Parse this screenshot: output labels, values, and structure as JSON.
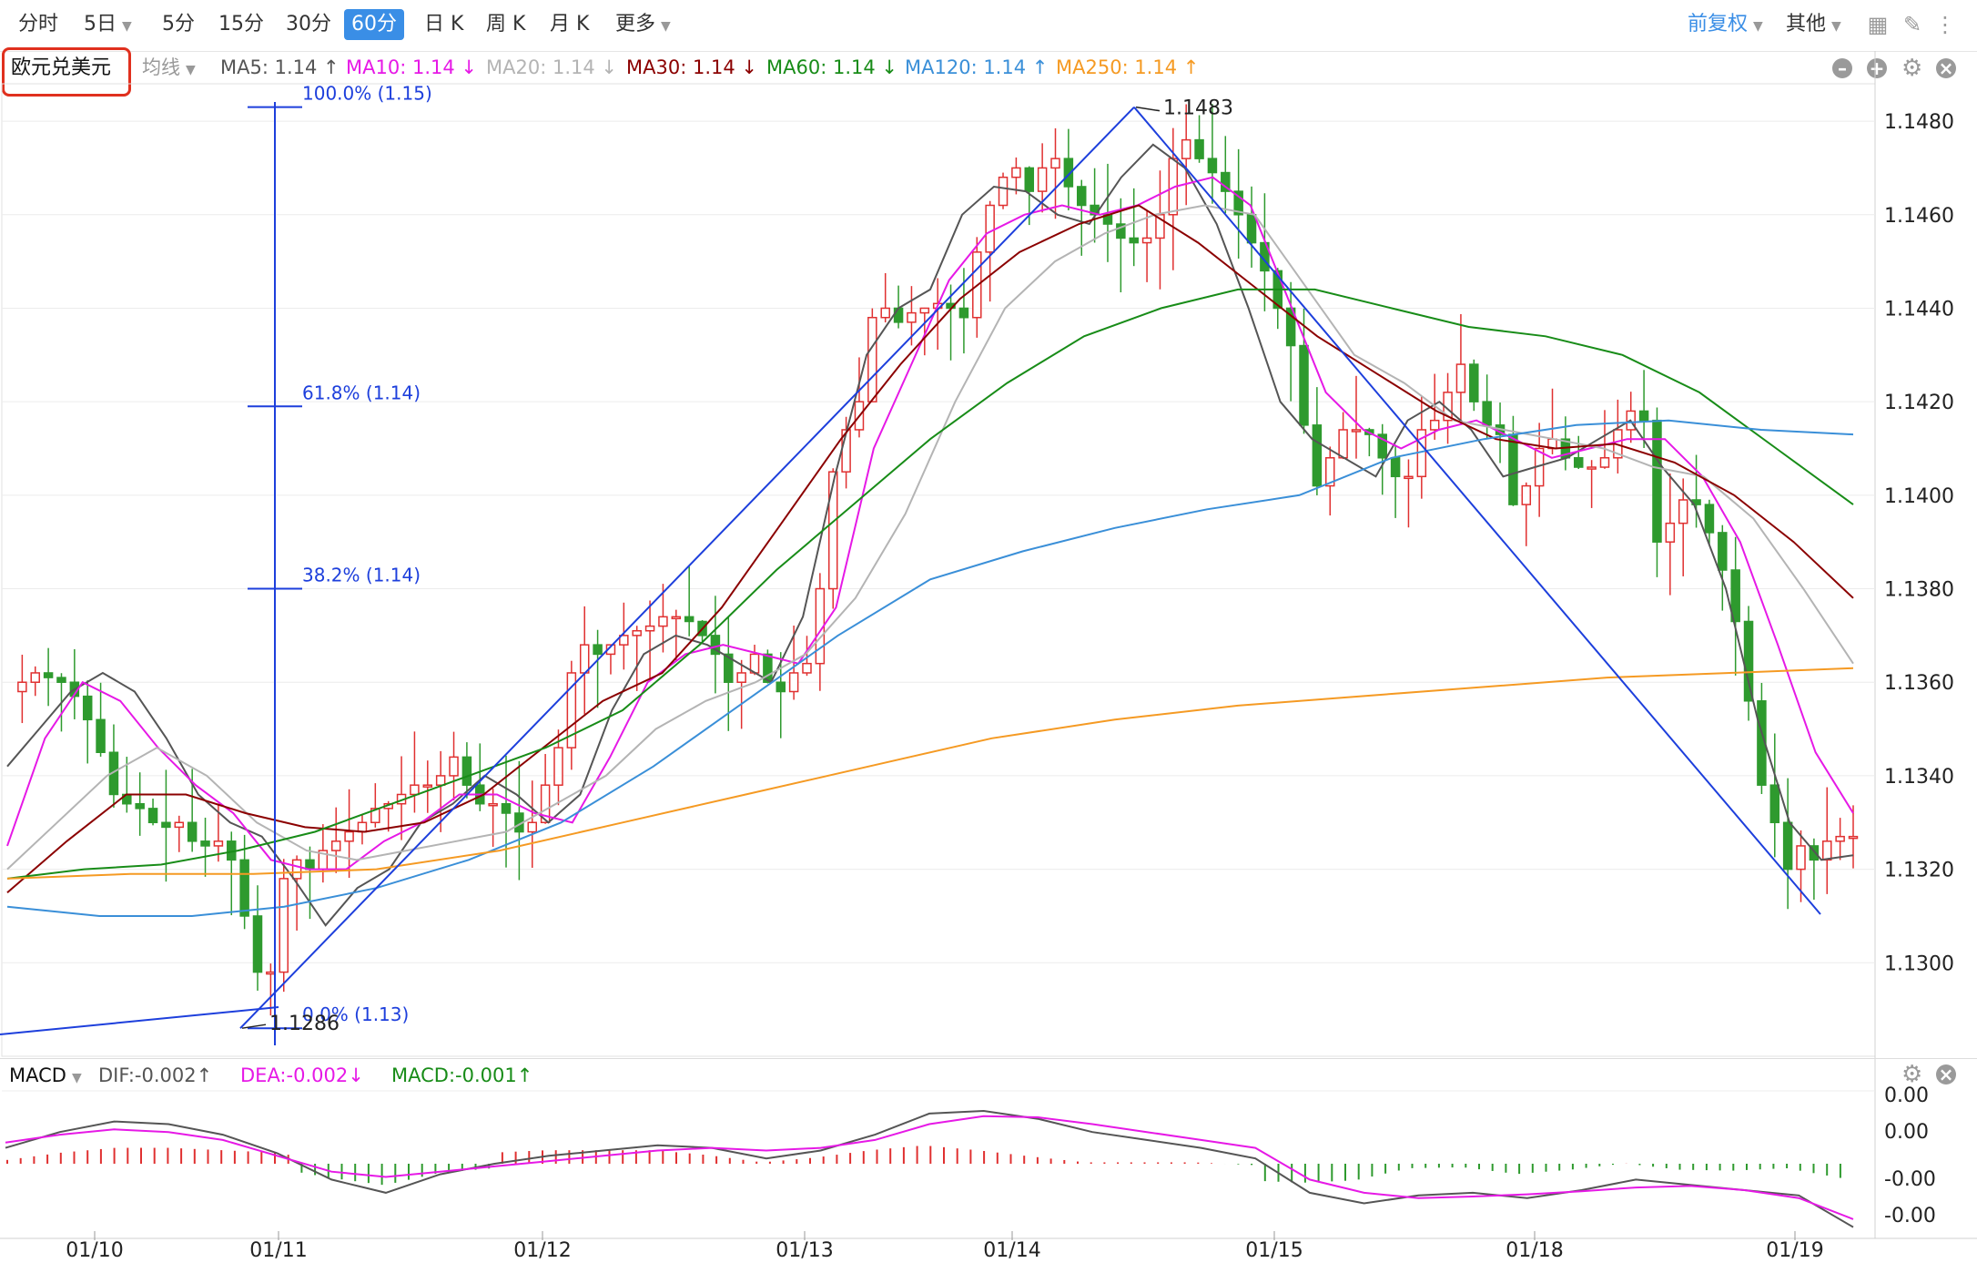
{
  "toolbar": {
    "left_items": [
      {
        "label": "分时",
        "active": false
      },
      {
        "label": "5日",
        "active": false,
        "dropdown": true
      },
      {
        "label": "5分",
        "active": false
      },
      {
        "label": "15分",
        "active": false
      },
      {
        "label": "30分",
        "active": false
      },
      {
        "label": "60分",
        "active": true
      },
      {
        "label": "日 K",
        "active": false
      },
      {
        "label": "周 K",
        "active": false
      },
      {
        "label": "月 K",
        "active": false
      },
      {
        "label": "更多",
        "active": false,
        "dropdown": true
      }
    ],
    "right_items": [
      {
        "label": "前复权",
        "dropdown": true
      },
      {
        "label": "其他",
        "dropdown": true
      }
    ],
    "icons": [
      "grid-icon",
      "pencil-icon",
      "more-icon"
    ]
  },
  "symbol": "欧元兑美元",
  "indicator_select": "均线",
  "ma_legend": [
    {
      "label": "MA5: 1.14 ↑",
      "color": "#555555"
    },
    {
      "label": "MA10: 1.14 ↓",
      "color": "#e619e6"
    },
    {
      "label": "MA20: 1.14 ↓",
      "color": "#b4b4b4"
    },
    {
      "label": "MA30: 1.14 ↓",
      "color": "#8b0000"
    },
    {
      "label": "MA60: 1.14 ↓",
      "color": "#188c18"
    },
    {
      "label": "MA120: 1.14 ↑",
      "color": "#3a8fd8"
    },
    {
      "label": "MA250: 1.14 ↑",
      "color": "#f59a23"
    }
  ],
  "macd_legend": {
    "name": "MACD",
    "items": [
      {
        "label": "DIF:-0.002↑",
        "color": "#555555"
      },
      {
        "label": "DEA:-0.002↓",
        "color": "#e619e6"
      },
      {
        "label": "MACD:-0.001↑",
        "color": "#188c18"
      }
    ]
  },
  "colors": {
    "up": "#e03030",
    "down": "#2e9a2e",
    "fib": "#1d3fdc",
    "accent": "#3a8ee6"
  },
  "chart_data": [
    {
      "type": "candlestick",
      "title": "欧元兑美元",
      "timeframe": "60分",
      "x_ticks": [
        "01/10",
        "01/11",
        "01/12",
        "01/13",
        "01/14",
        "01/15",
        "01/18",
        "01/19"
      ],
      "y_ticks": [
        1.13,
        1.132,
        1.134,
        1.136,
        1.138,
        1.14,
        1.142,
        1.144,
        1.146,
        1.148
      ],
      "ylim": [
        1.128,
        1.1488
      ],
      "annotations": [
        {
          "text": "1.1483",
          "price": 1.1483
        },
        {
          "text": "1.1286",
          "price": 1.1286
        }
      ],
      "fibonacci": [
        {
          "label": "100.0% (1.15)",
          "price": 1.1483
        },
        {
          "label": "61.8% (1.14)",
          "price": 1.1419
        },
        {
          "label": "38.2% (1.14)",
          "price": 1.138
        },
        {
          "label": "0.0% (1.13)",
          "price": 1.1286
        }
      ],
      "close_path_points": [
        1.1358,
        1.136,
        1.1362,
        1.1361,
        1.136,
        1.1357,
        1.1352,
        1.1345,
        1.1336,
        1.1334,
        1.1333,
        1.133,
        1.1329,
        1.133,
        1.1326,
        1.1325,
        1.1326,
        1.1322,
        1.131,
        1.1298,
        1.1298,
        1.1318,
        1.1322,
        1.132,
        1.1324,
        1.1326,
        1.1328,
        1.133,
        1.1333,
        1.1334,
        1.1336,
        1.1338,
        1.1338,
        1.134,
        1.1344,
        1.1338,
        1.1334,
        1.1334,
        1.1332,
        1.1328,
        1.133,
        1.1338,
        1.1346,
        1.1362,
        1.1368,
        1.1366,
        1.1368,
        1.137,
        1.1371,
        1.1372,
        1.1374,
        1.1374,
        1.1373,
        1.137,
        1.1366,
        1.136,
        1.1362,
        1.1366,
        1.136,
        1.1358,
        1.1362,
        1.1364,
        1.138,
        1.1405,
        1.1414,
        1.142,
        1.1438,
        1.144,
        1.1437,
        1.1439,
        1.144,
        1.1441,
        1.144,
        1.1438,
        1.1452,
        1.1462,
        1.1468,
        1.147,
        1.1465,
        1.147,
        1.1472,
        1.1466,
        1.1462,
        1.146,
        1.1458,
        1.1455,
        1.1454,
        1.1455,
        1.146,
        1.1472,
        1.1476,
        1.1472,
        1.1469,
        1.1465,
        1.146,
        1.1454,
        1.1448,
        1.144,
        1.1432,
        1.1415,
        1.1402,
        1.1408,
        1.1414,
        1.1414,
        1.1413,
        1.1408,
        1.1404,
        1.1404,
        1.1414,
        1.1416,
        1.1422,
        1.1428,
        1.142,
        1.1415,
        1.1413,
        1.1398,
        1.1402,
        1.141,
        1.1412,
        1.1408,
        1.1406,
        1.1406,
        1.1408,
        1.1414,
        1.1418,
        1.1416,
        1.139,
        1.1394,
        1.1399,
        1.1398,
        1.1392,
        1.1384,
        1.1373,
        1.1356,
        1.1338,
        1.133,
        1.132,
        1.1325,
        1.1322,
        1.1326,
        1.1327,
        1.1327
      ],
      "series": [
        {
          "name": "MA5",
          "color": "#555555",
          "points": [
            1.1342,
            1.135,
            1.1358,
            1.1362,
            1.1358,
            1.1348,
            1.1336,
            1.133,
            1.1327,
            1.1318,
            1.1308,
            1.1316,
            1.132,
            1.133,
            1.1334,
            1.134,
            1.1336,
            1.133,
            1.1336,
            1.1354,
            1.1366,
            1.137,
            1.1368,
            1.1364,
            1.136,
            1.1374,
            1.1404,
            1.143,
            1.144,
            1.1444,
            1.146,
            1.1466,
            1.1465,
            1.146,
            1.1458,
            1.1468,
            1.1475,
            1.147,
            1.1458,
            1.144,
            1.142,
            1.1412,
            1.1408,
            1.1404,
            1.1416,
            1.142,
            1.1414,
            1.1404,
            1.1406,
            1.1408,
            1.1412,
            1.1416,
            1.1406,
            1.1398,
            1.138,
            1.1352,
            1.133,
            1.1322,
            1.1323
          ]
        },
        {
          "name": "MA10",
          "color": "#e619e6",
          "points": [
            1.1325,
            1.1348,
            1.136,
            1.1356,
            1.1346,
            1.1338,
            1.1332,
            1.1322,
            1.132,
            1.132,
            1.1326,
            1.133,
            1.1336,
            1.1336,
            1.1332,
            1.133,
            1.1344,
            1.136,
            1.1366,
            1.1368,
            1.1366,
            1.1364,
            1.1376,
            1.141,
            1.1428,
            1.1446,
            1.1456,
            1.146,
            1.1462,
            1.146,
            1.1462,
            1.1466,
            1.1468,
            1.1462,
            1.1442,
            1.1422,
            1.1414,
            1.141,
            1.1414,
            1.1416,
            1.1412,
            1.1408,
            1.141,
            1.1412,
            1.1412,
            1.1404,
            1.139,
            1.1368,
            1.1345,
            1.1332
          ]
        },
        {
          "name": "MA20",
          "color": "#b4b4b4",
          "points": [
            1.132,
            1.133,
            1.134,
            1.1346,
            1.134,
            1.133,
            1.1324,
            1.1322,
            1.1324,
            1.1326,
            1.1328,
            1.1334,
            1.134,
            1.135,
            1.1356,
            1.136,
            1.1366,
            1.1378,
            1.1396,
            1.142,
            1.144,
            1.145,
            1.1456,
            1.146,
            1.1462,
            1.146,
            1.1445,
            1.143,
            1.1424,
            1.1416,
            1.1414,
            1.1412,
            1.141,
            1.1406,
            1.1404,
            1.1395,
            1.138,
            1.1364
          ]
        },
        {
          "name": "MA30",
          "color": "#8b0000",
          "points": [
            1.1315,
            1.1326,
            1.1336,
            1.1336,
            1.1332,
            1.1329,
            1.1328,
            1.133,
            1.1336,
            1.1346,
            1.1356,
            1.1362,
            1.1376,
            1.1394,
            1.1412,
            1.1428,
            1.1442,
            1.1452,
            1.1458,
            1.1462,
            1.1454,
            1.1444,
            1.1434,
            1.1426,
            1.1418,
            1.1412,
            1.141,
            1.1411,
            1.1407,
            1.14,
            1.139,
            1.1378
          ]
        },
        {
          "name": "MA60",
          "color": "#188c18",
          "points": [
            1.1318,
            1.132,
            1.1321,
            1.1324,
            1.1328,
            1.1334,
            1.134,
            1.1346,
            1.1354,
            1.1368,
            1.1384,
            1.1398,
            1.1412,
            1.1424,
            1.1434,
            1.144,
            1.1444,
            1.1444,
            1.144,
            1.1436,
            1.1434,
            1.143,
            1.1422,
            1.141,
            1.1398
          ]
        },
        {
          "name": "MA120",
          "color": "#3a8fd8",
          "points": [
            1.1312,
            1.131,
            1.131,
            1.1312,
            1.1316,
            1.1322,
            1.133,
            1.1342,
            1.1356,
            1.137,
            1.1382,
            1.1388,
            1.1393,
            1.1397,
            1.14,
            1.1408,
            1.1412,
            1.1415,
            1.1416,
            1.1414,
            1.1413
          ]
        },
        {
          "name": "MA250",
          "color": "#f59a23",
          "points": [
            1.1318,
            1.1319,
            1.1319,
            1.132,
            1.1324,
            1.133,
            1.1336,
            1.1342,
            1.1348,
            1.1352,
            1.1355,
            1.1357,
            1.1359,
            1.1361,
            1.1362,
            1.1363
          ]
        }
      ]
    },
    {
      "type": "macd",
      "y_ticks": [
        "0.00",
        "0.00",
        "-0.00",
        "-0.00"
      ],
      "series": [
        {
          "name": "DIF",
          "color": "#555555",
          "points": [
            0.3,
            0.6,
            0.8,
            0.75,
            0.55,
            0.2,
            -0.3,
            -0.55,
            -0.2,
            0.0,
            0.15,
            0.25,
            0.35,
            0.3,
            0.1,
            0.25,
            0.55,
            0.95,
            1.0,
            0.85,
            0.6,
            0.45,
            0.3,
            0.1,
            -0.55,
            -0.75,
            -0.6,
            -0.55,
            -0.65,
            -0.5,
            -0.3,
            -0.4,
            -0.5,
            -0.6,
            -1.2
          ]
        },
        {
          "name": "DEA",
          "color": "#e619e6",
          "points": [
            0.4,
            0.55,
            0.65,
            0.6,
            0.45,
            0.15,
            -0.15,
            -0.25,
            -0.15,
            -0.05,
            0.05,
            0.15,
            0.25,
            0.3,
            0.25,
            0.3,
            0.45,
            0.75,
            0.9,
            0.88,
            0.75,
            0.6,
            0.45,
            0.3,
            -0.3,
            -0.55,
            -0.65,
            -0.62,
            -0.58,
            -0.52,
            -0.45,
            -0.42,
            -0.5,
            -0.65,
            -1.05
          ]
        }
      ]
    }
  ]
}
